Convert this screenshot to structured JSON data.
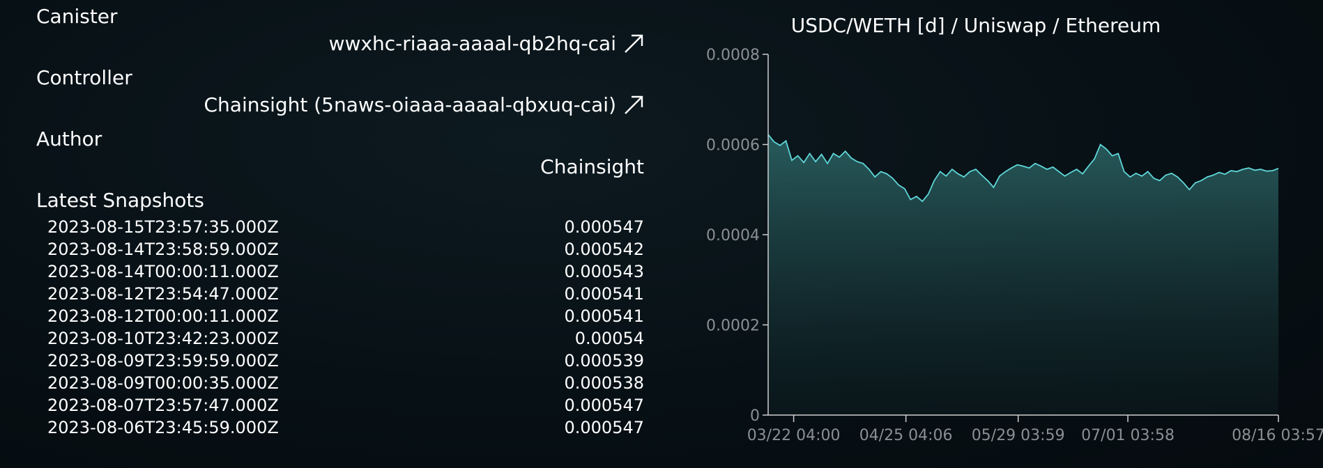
{
  "canister": {
    "label": "Canister",
    "id": "wwxhc-riaaa-aaaal-qb2hq-cai"
  },
  "controller": {
    "label": "Controller",
    "value": "Chainsight (5naws-oiaaa-aaaal-qbxuq-cai)"
  },
  "author": {
    "label": "Author",
    "value": "Chainsight"
  },
  "snapshots": {
    "label": "Latest Snapshots",
    "rows": [
      {
        "timestamp": "2023-08-15T23:57:35.000Z",
        "value": "0.000547"
      },
      {
        "timestamp": "2023-08-14T23:58:59.000Z",
        "value": "0.000542"
      },
      {
        "timestamp": "2023-08-14T00:00:11.000Z",
        "value": "0.000543"
      },
      {
        "timestamp": "2023-08-12T23:54:47.000Z",
        "value": "0.000541"
      },
      {
        "timestamp": "2023-08-12T00:00:11.000Z",
        "value": "0.000541"
      },
      {
        "timestamp": "2023-08-10T23:42:23.000Z",
        "value": "0.00054"
      },
      {
        "timestamp": "2023-08-09T23:59:59.000Z",
        "value": "0.000539"
      },
      {
        "timestamp": "2023-08-09T00:00:35.000Z",
        "value": "0.000538"
      },
      {
        "timestamp": "2023-08-07T23:57:47.000Z",
        "value": "0.000547"
      },
      {
        "timestamp": "2023-08-06T23:45:59.000Z",
        "value": "0.000547"
      }
    ]
  },
  "colors": {
    "line": "#5fd6d8",
    "fill_top": "#2a5f60",
    "axis": "#cfcfcf",
    "tick_text": "#8a8f93"
  },
  "chart_data": {
    "type": "area",
    "title": "USDC/WETH [d] / Uniswap / Ethereum",
    "xlabel": "",
    "ylabel": "",
    "ylim": [
      0,
      0.0008
    ],
    "y_ticks": [
      "0",
      "0.0002",
      "0.0004",
      "0.0006",
      "0.0008"
    ],
    "x_ticks": [
      "03/22 04:00",
      "04/25 04:06",
      "05/29 03:59",
      "07/01 03:58",
      "08/16 03:57"
    ],
    "x_tick_positions": [
      0.05,
      0.27,
      0.49,
      0.705,
      1.0
    ],
    "grid": false,
    "series": [
      {
        "values": [
          0.000622,
          0.000606,
          0.000598,
          0.000608,
          0.000565,
          0.000575,
          0.00056,
          0.00058,
          0.000562,
          0.000578,
          0.000558,
          0.00058,
          0.000572,
          0.000585,
          0.00057,
          0.000562,
          0.000558,
          0.000545,
          0.000528,
          0.00054,
          0.000535,
          0.000525,
          0.00051,
          0.000502,
          0.000478,
          0.000485,
          0.000474,
          0.00049,
          0.00052,
          0.00054,
          0.00053,
          0.000545,
          0.000535,
          0.000528,
          0.00054,
          0.000545,
          0.000532,
          0.00052,
          0.000505,
          0.00053,
          0.00054,
          0.000548,
          0.000555,
          0.000552,
          0.000548,
          0.000558,
          0.000552,
          0.000545,
          0.00055,
          0.00054,
          0.00053,
          0.000538,
          0.000545,
          0.000535,
          0.000552,
          0.000568,
          0.0006,
          0.00059,
          0.000575,
          0.00058,
          0.00054,
          0.000528,
          0.000536,
          0.00053,
          0.00054,
          0.000525,
          0.00052,
          0.000532,
          0.000536,
          0.000528,
          0.000515,
          0.0005,
          0.000515,
          0.00052,
          0.000528,
          0.000532,
          0.000538,
          0.000534,
          0.000542,
          0.00054,
          0.000545,
          0.000548,
          0.000543,
          0.000545,
          0.000541,
          0.000542,
          0.000547
        ]
      }
    ]
  }
}
